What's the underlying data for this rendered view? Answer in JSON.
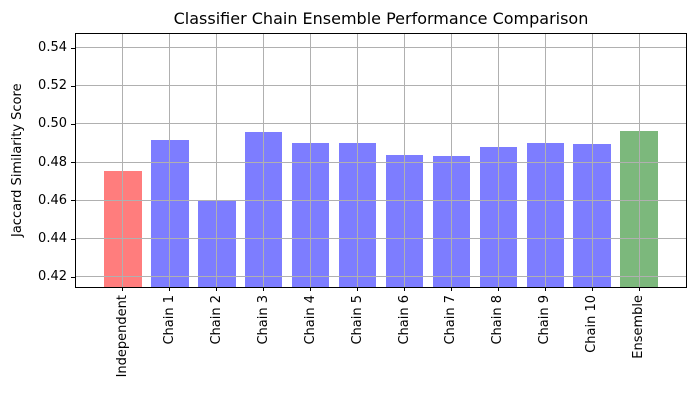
{
  "chart_data": {
    "type": "bar",
    "title": "Classifier Chain Ensemble Performance Comparison",
    "xlabel": "",
    "ylabel": "Jaccard Similarity Score",
    "categories": [
      "Independent",
      "Chain 1",
      "Chain 2",
      "Chain 3",
      "Chain 4",
      "Chain 5",
      "Chain 6",
      "Chain 7",
      "Chain 8",
      "Chain 9",
      "Chain 10",
      "Ensemble"
    ],
    "values": [
      0.4755,
      0.4917,
      0.4598,
      0.4956,
      0.4901,
      0.4901,
      0.484,
      0.4832,
      0.4877,
      0.4901,
      0.4896,
      0.4963
    ],
    "bar_colors": [
      "#ff7d7d",
      "#7d7dff",
      "#7d7dff",
      "#7d7dff",
      "#7d7dff",
      "#7d7dff",
      "#7d7dff",
      "#7d7dff",
      "#7d7dff",
      "#7d7dff",
      "#7d7dff",
      "#7cb87c"
    ],
    "color_legend": {
      "independent": "#ff7d7d",
      "chains": "#7d7dff",
      "ensemble": "#7cb87c"
    },
    "yticks": [
      0.42,
      0.44,
      0.46,
      0.48,
      0.5,
      0.52,
      0.54
    ],
    "ytick_labels": [
      "0.42",
      "0.44",
      "0.46",
      "0.48",
      "0.50",
      "0.52",
      "0.54"
    ],
    "ylim": [
      0.4146,
      0.5471
    ],
    "bar_width_fraction": 0.8,
    "grid": true,
    "grid_color": "#b0b0b0",
    "legend_position": "none"
  }
}
